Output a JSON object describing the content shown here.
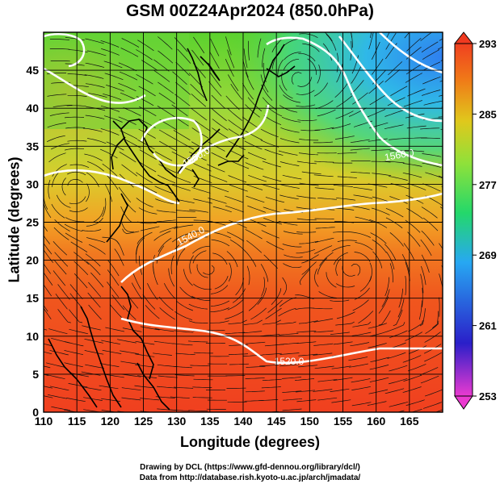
{
  "title": "GSM 00Z24Apr2024 (850.0hPa)",
  "xlabel": "Longitude (degrees)",
  "ylabel": "Latitude  (degrees)",
  "credits": [
    "Drawing by DCL (https://www.gfd-dennou.org/library/dcl/)",
    "Data from http://database.rish.kyoto-u.ac.jp/arch/jmadata/"
  ],
  "map": {
    "xlim": [
      110,
      170
    ],
    "ylim": [
      0,
      50
    ],
    "xticks": [
      "110",
      "115",
      "120",
      "125",
      "130",
      "135",
      "140",
      "145",
      "150",
      "155",
      "160",
      "165"
    ],
    "yticks": [
      "0",
      "5",
      "10",
      "15",
      "20",
      "25",
      "30",
      "35",
      "40",
      "45"
    ],
    "contour_labels": [
      "1520.0",
      "1540.0",
      "1560.0"
    ],
    "colorbar": {
      "ticks": [
        "293",
        "285",
        "277",
        "269",
        "261",
        "253"
      ],
      "stops": [
        "#e63cd2",
        "#2a1fc9",
        "#2aa0f0",
        "#20d870",
        "#7de13c",
        "#d6d020",
        "#f07818",
        "#f03820"
      ]
    }
  }
}
